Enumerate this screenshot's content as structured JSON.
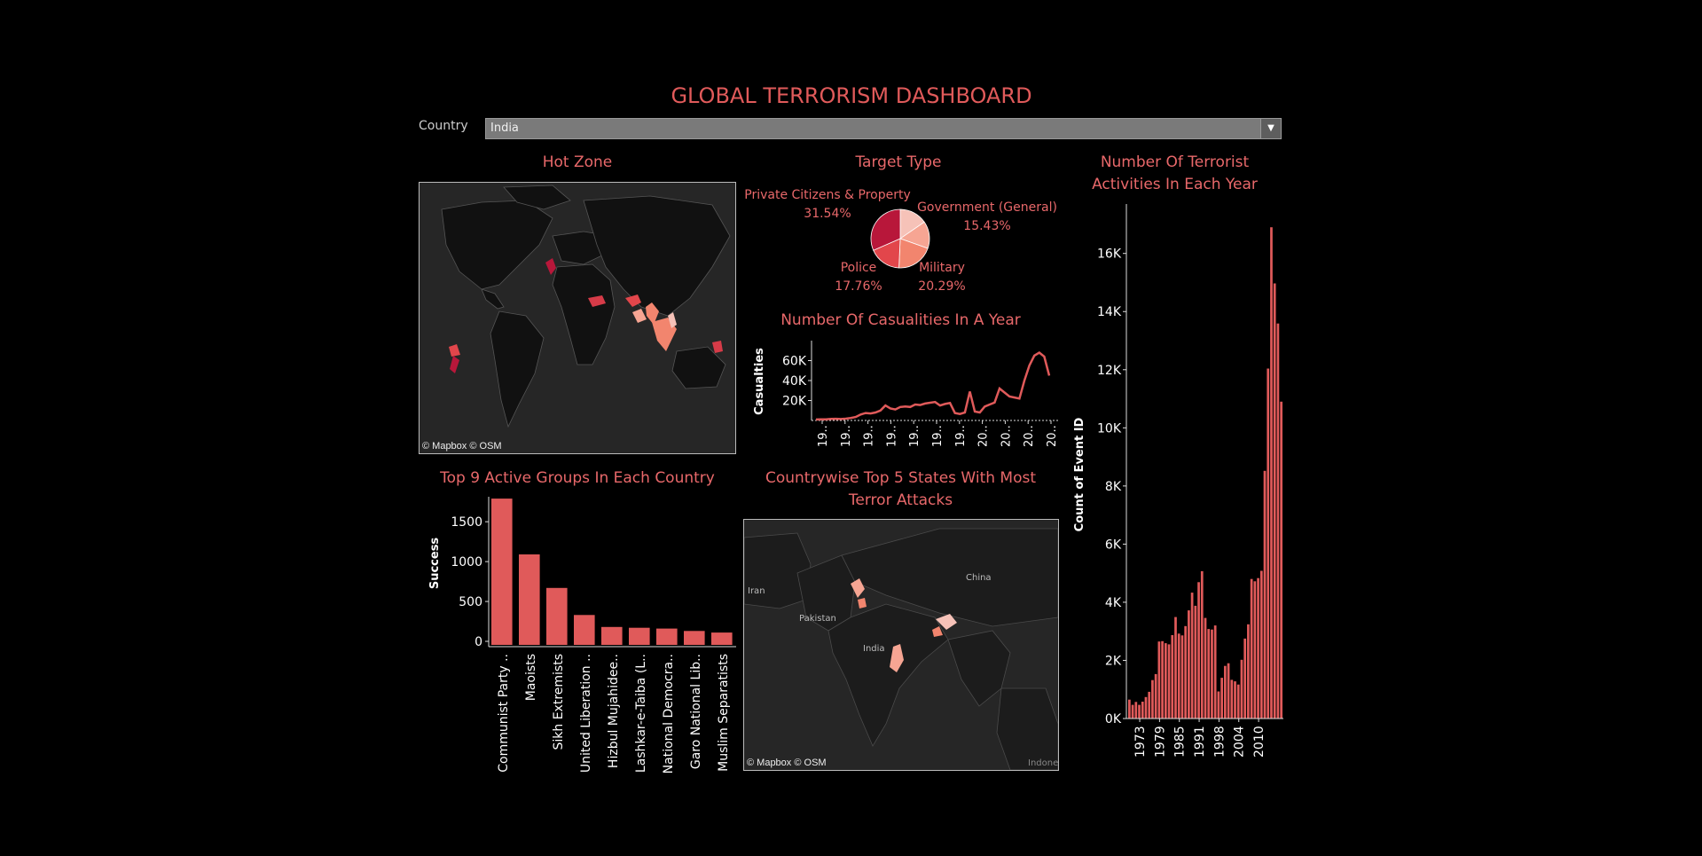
{
  "dashboard_title": "GLOBAL TERRORISM DASHBOARD",
  "filter": {
    "label": "Country",
    "selected": "India"
  },
  "colors": {
    "accent": "#e05a5a",
    "bar": "#e05a5a",
    "background": "#000000"
  },
  "hot_zone": {
    "title": "Hot Zone",
    "credit": "© Mapbox © OSM"
  },
  "states_map": {
    "title_line1": "Countrywise Top 5 States With Most",
    "title_line2": "Terror Attacks",
    "credit": "© Mapbox © OSM",
    "labels": [
      "Iran",
      "Pakistan",
      "India",
      "China",
      "Indone"
    ]
  },
  "chart_data": [
    {
      "id": "target_type",
      "type": "pie",
      "title": "Target Type",
      "slices": [
        {
          "label": "Private Citizens & Property",
          "pct_label": "31.54%",
          "value": 31.54,
          "color": "#b8173a"
        },
        {
          "label": "Government (General)",
          "pct_label": "15.43%",
          "value": 15.43,
          "color": "#f6c2b8"
        },
        {
          "label": "Military",
          "pct_label": "20.29%",
          "value": 20.29,
          "color": "#f2856e"
        },
        {
          "label": "Police",
          "pct_label": "17.76%",
          "value": 17.76,
          "color": "#e2464b"
        },
        {
          "label": "",
          "pct_label": "",
          "value": 14.98,
          "color": "#f6a593"
        }
      ]
    },
    {
      "id": "casualties",
      "type": "line",
      "title": "Number Of Casualities In A Year",
      "ylabel": "Casualties",
      "yticks": [
        20000,
        40000,
        60000
      ],
      "ytick_labels": [
        "20K",
        "40K",
        "60K"
      ],
      "ylim": [
        0,
        80000
      ],
      "xtick_labels": [
        "19..",
        "19..",
        "19..",
        "19..",
        "19..",
        "19..",
        "19..",
        "20..",
        "20..",
        "20..",
        "20.."
      ],
      "x": [
        1970,
        1971,
        1972,
        1973,
        1974,
        1975,
        1976,
        1977,
        1978,
        1979,
        1980,
        1981,
        1982,
        1983,
        1984,
        1985,
        1986,
        1987,
        1988,
        1989,
        1990,
        1991,
        1992,
        1994,
        1995,
        1996,
        1997,
        1998,
        1999,
        2000,
        2001,
        2002,
        2003,
        2004,
        2005,
        2006,
        2007,
        2008,
        2009,
        2010,
        2011,
        2012,
        2013,
        2014,
        2015,
        2016,
        2017
      ],
      "values": [
        1000,
        1200,
        1100,
        1500,
        1700,
        1400,
        1800,
        2500,
        3500,
        6000,
        7500,
        7000,
        8000,
        10000,
        15000,
        12000,
        11000,
        13500,
        14000,
        13500,
        16000,
        15500,
        17000,
        18500,
        15000,
        16500,
        17500,
        7500,
        6500,
        8000,
        29000,
        9000,
        8000,
        14000,
        16000,
        18000,
        32000,
        28000,
        24000,
        23000,
        22000,
        40000,
        55000,
        65000,
        68000,
        64000,
        45000
      ]
    },
    {
      "id": "activities",
      "type": "bar",
      "title_line1": "Number Of Terrorist",
      "title_line2": "Activities In Each Year",
      "ylabel": "Count of Event ID",
      "yticks": [
        0,
        2000,
        4000,
        6000,
        8000,
        10000,
        12000,
        14000,
        16000
      ],
      "ytick_labels": [
        "0K",
        "2K",
        "4K",
        "6K",
        "8K",
        "10K",
        "12K",
        "14K",
        "16K"
      ],
      "ylim": [
        0,
        17700
      ],
      "xtick_labels": [
        "1973",
        "1979",
        "1985",
        "1991",
        "1998",
        "2004",
        "2010"
      ],
      "x": [
        1970,
        1971,
        1972,
        1973,
        1974,
        1975,
        1976,
        1977,
        1978,
        1979,
        1980,
        1981,
        1982,
        1983,
        1984,
        1985,
        1986,
        1987,
        1988,
        1989,
        1990,
        1991,
        1992,
        1994,
        1995,
        1996,
        1997,
        1998,
        1999,
        2000,
        2001,
        2002,
        2003,
        2004,
        2005,
        2006,
        2007,
        2008,
        2009,
        2010,
        2011,
        2012,
        2013,
        2014,
        2015,
        2016,
        2017
      ],
      "values": [
        650,
        470,
        570,
        470,
        580,
        740,
        920,
        1320,
        1530,
        2650,
        2660,
        2590,
        2550,
        2870,
        3490,
        2920,
        2860,
        3180,
        3720,
        4330,
        3880,
        4690,
        5070,
        3460,
        3080,
        3060,
        3200,
        930,
        1400,
        1810,
        1900,
        1330,
        1280,
        1170,
        2020,
        2750,
        3240,
        4800,
        4720,
        4830,
        5080,
        8520,
        12040,
        16900,
        14970,
        13590,
        10900
      ]
    },
    {
      "id": "active_groups",
      "type": "bar",
      "title": "Top 9 Active Groups In Each Country",
      "ylabel": "Success",
      "yticks": [
        0,
        500,
        1000,
        1500
      ],
      "ytick_labels": [
        "0",
        "500",
        "1000",
        "1500"
      ],
      "ylim": [
        0,
        1880
      ],
      "categories": [
        "Communist Party ..",
        "Maoists",
        "Sikh Extremists",
        "United Liberation ..",
        "Hizbul Mujahidee..",
        "Lashkar-e-Taiba (L..",
        "National Democra..",
        "Garo National Lib..",
        "Muslim Separatists"
      ],
      "values": [
        1790,
        1090,
        670,
        330,
        180,
        170,
        160,
        130,
        110
      ]
    }
  ]
}
